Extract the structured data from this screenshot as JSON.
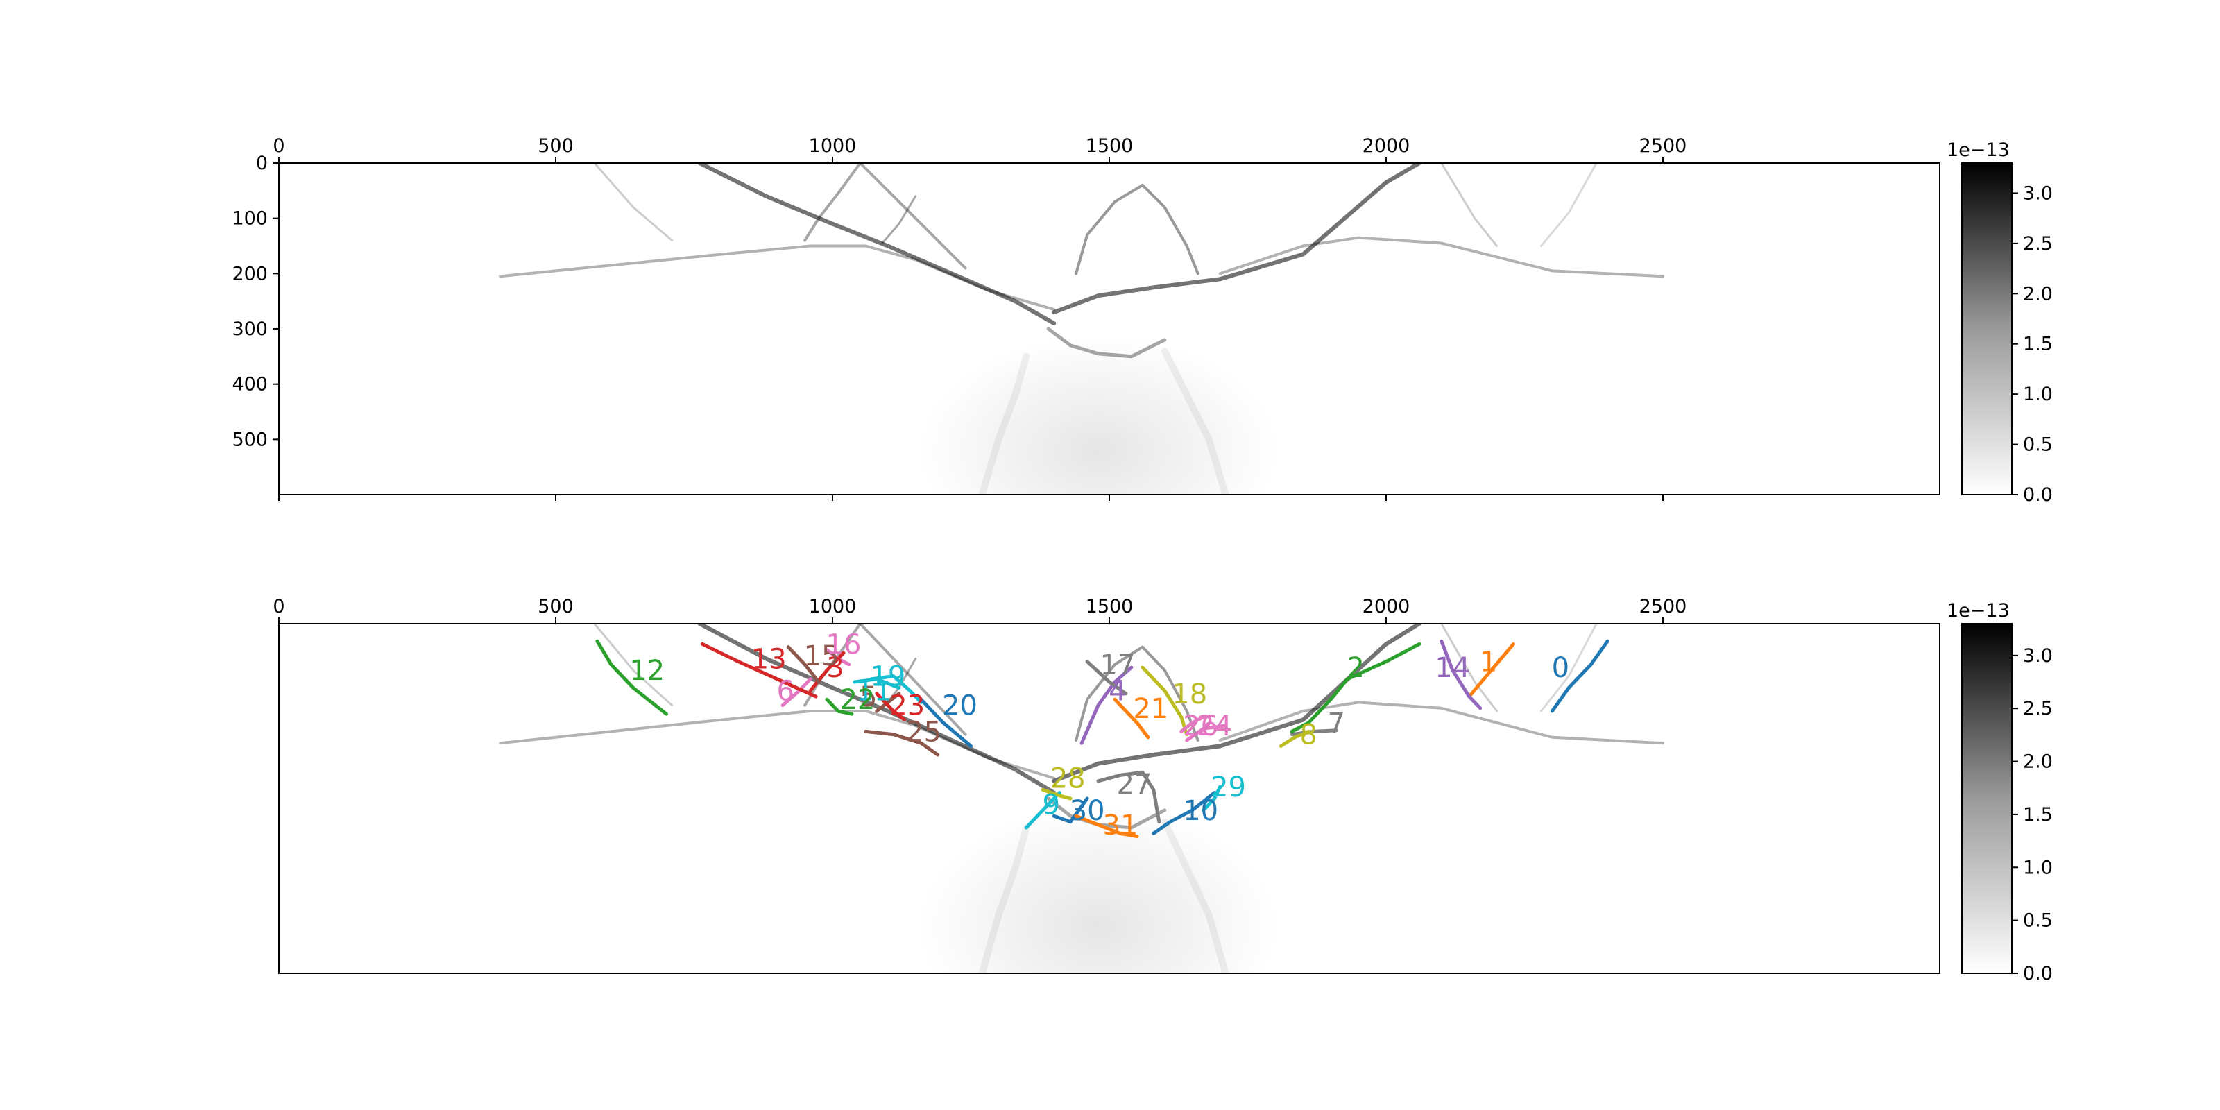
{
  "chart_data": [
    {
      "type": "heatmap",
      "panel": "top",
      "title": "",
      "xlabel": "",
      "ylabel": "",
      "xlim": [
        0,
        3000
      ],
      "ylim": [
        600,
        0
      ],
      "x_ticks": [
        0,
        500,
        1000,
        1500,
        2000,
        2500
      ],
      "y_ticks": [
        0,
        100,
        200,
        300,
        400,
        500
      ],
      "x_axis_position": "top",
      "colormap": "greys",
      "colorbar": {
        "min": 0.0,
        "max": 3.3,
        "ticks": [
          0.0,
          0.5,
          1.0,
          1.5,
          2.0,
          2.5,
          3.0
        ],
        "ticklabels": [
          "0.0",
          "0.5",
          "1.0",
          "1.5",
          "2.0",
          "2.5",
          "3.0"
        ],
        "exponent_label": "1e−13"
      },
      "grid": false
    },
    {
      "type": "heatmap",
      "panel": "bottom",
      "title": "",
      "xlabel": "",
      "ylabel": "",
      "xlim": [
        0,
        3000
      ],
      "ylim": [
        600,
        0
      ],
      "x_ticks": [
        0,
        500,
        1000,
        1500,
        2000,
        2500
      ],
      "x_axis_position": "top",
      "colormap": "greys",
      "colorbar": {
        "min": 0.0,
        "max": 3.3,
        "ticks": [
          0.0,
          0.5,
          1.0,
          1.5,
          2.0,
          2.5,
          3.0
        ],
        "ticklabels": [
          "0.0",
          "0.5",
          "1.0",
          "1.5",
          "2.0",
          "2.5",
          "3.0"
        ],
        "exponent_label": "1e−13"
      },
      "grid": false,
      "tracks": [
        {
          "label": "0",
          "color": "#1f77b4",
          "points": [
            [
              2400,
              30
            ],
            [
              2370,
              70
            ],
            [
              2330,
              110
            ],
            [
              2300,
              150
            ]
          ],
          "label_at": [
            2315,
            75
          ]
        },
        {
          "label": "1",
          "color": "#ff7f0e",
          "points": [
            [
              2230,
              35
            ],
            [
              2190,
              80
            ],
            [
              2150,
              125
            ]
          ],
          "label_at": [
            2185,
            65
          ]
        },
        {
          "label": "2",
          "color": "#2ca02c",
          "points": [
            [
              2060,
              35
            ],
            [
              2000,
              65
            ],
            [
              1930,
              95
            ],
            [
              1900,
              130
            ],
            [
              1860,
              170
            ],
            [
              1830,
              185
            ]
          ],
          "label_at": [
            1945,
            75
          ]
        },
        {
          "label": "3",
          "color": "#d62728",
          "points": [
            [
              1020,
              50
            ],
            [
              990,
              80
            ],
            [
              960,
              115
            ]
          ],
          "label_at": [
            1005,
            75
          ]
        },
        {
          "label": "4",
          "color": "#9467bd",
          "points": [
            [
              1540,
              75
            ],
            [
              1510,
              100
            ],
            [
              1480,
              140
            ],
            [
              1450,
              205
            ]
          ],
          "label_at": [
            1515,
            115
          ]
        },
        {
          "label": "5",
          "color": "#8c564b",
          "points": [
            [
              1120,
              120
            ],
            [
              1100,
              135
            ],
            [
              1080,
              150
            ]
          ],
          "label_at": [
            1065,
            125
          ]
        },
        {
          "label": "6",
          "color": "#e377c2",
          "points": [
            [
              960,
              95
            ],
            [
              940,
              115
            ],
            [
              910,
              140
            ]
          ],
          "label_at": [
            915,
            115
          ]
        },
        {
          "label": "7",
          "color": "#7f7f7f",
          "points": [
            [
              1830,
              190
            ],
            [
              1870,
              185
            ],
            [
              1910,
              183
            ]
          ],
          "label_at": [
            1910,
            170
          ]
        },
        {
          "label": "8",
          "color": "#bcbd22",
          "points": [
            [
              1860,
              185
            ],
            [
              1835,
              195
            ],
            [
              1810,
              210
            ]
          ],
          "label_at": [
            1860,
            190
          ]
        },
        {
          "label": "9",
          "color": "#17becf",
          "points": [
            [
              1410,
              290
            ],
            [
              1380,
              320
            ],
            [
              1350,
              350
            ]
          ],
          "label_at": [
            1395,
            310
          ]
        },
        {
          "label": "10",
          "color": "#1f77b4",
          "points": [
            [
              1690,
              290
            ],
            [
              1650,
              320
            ],
            [
              1610,
              340
            ],
            [
              1580,
              360
            ]
          ],
          "label_at": [
            1665,
            320
          ]
        },
        {
          "label": "11",
          "color": "#17becf",
          "points": [
            [
              1040,
              100
            ],
            [
              1080,
              95
            ],
            [
              1120,
              110
            ]
          ],
          "label_at": [
            1075,
            115
          ]
        },
        {
          "label": "12",
          "color": "#2ca02c",
          "points": [
            [
              575,
              30
            ],
            [
              600,
              70
            ],
            [
              640,
              110
            ],
            [
              700,
              155
            ]
          ],
          "label_at": [
            665,
            80
          ]
        },
        {
          "label": "13",
          "color": "#d62728",
          "points": [
            [
              765,
              35
            ],
            [
              830,
              65
            ],
            [
              900,
              95
            ],
            [
              970,
              125
            ]
          ],
          "label_at": [
            885,
            60
          ]
        },
        {
          "label": "14",
          "color": "#9467bd",
          "points": [
            [
              2100,
              30
            ],
            [
              2120,
              80
            ],
            [
              2150,
              125
            ],
            [
              2170,
              145
            ]
          ],
          "label_at": [
            2120,
            75
          ]
        },
        {
          "label": "15",
          "color": "#8c564b",
          "points": [
            [
              920,
              40
            ],
            [
              950,
              70
            ],
            [
              975,
              100
            ]
          ],
          "label_at": [
            980,
            55
          ]
        },
        {
          "label": "16",
          "color": "#e377c2",
          "points": [
            [
              990,
              45
            ],
            [
              1010,
              60
            ],
            [
              1030,
              70
            ]
          ],
          "label_at": [
            1020,
            35
          ]
        },
        {
          "label": "17",
          "color": "#7f7f7f",
          "points": [
            [
              1460,
              65
            ],
            [
              1500,
              100
            ],
            [
              1530,
              120
            ]
          ],
          "label_at": [
            1515,
            70
          ]
        },
        {
          "label": "18",
          "color": "#bcbd22",
          "points": [
            [
              1560,
              75
            ],
            [
              1600,
              115
            ],
            [
              1630,
              160
            ],
            [
              1640,
              190
            ]
          ],
          "label_at": [
            1645,
            120
          ]
        },
        {
          "label": "19",
          "color": "#17becf",
          "points": [
            [
              1070,
              95
            ],
            [
              1110,
              90
            ],
            [
              1140,
              115
            ],
            [
              1160,
              135
            ]
          ],
          "label_at": [
            1100,
            90
          ]
        },
        {
          "label": "20",
          "color": "#1f77b4",
          "points": [
            [
              1160,
              130
            ],
            [
              1200,
              170
            ],
            [
              1250,
              210
            ]
          ],
          "label_at": [
            1230,
            140
          ]
        },
        {
          "label": "21",
          "color": "#ff7f0e",
          "points": [
            [
              1510,
              130
            ],
            [
              1550,
              170
            ],
            [
              1570,
              195
            ]
          ],
          "label_at": [
            1575,
            145
          ]
        },
        {
          "label": "22",
          "color": "#2ca02c",
          "points": [
            [
              990,
              130
            ],
            [
              1010,
              150
            ],
            [
              1035,
              155
            ]
          ],
          "label_at": [
            1045,
            130
          ]
        },
        {
          "label": "23",
          "color": "#d62728",
          "points": [
            [
              1080,
              120
            ],
            [
              1110,
              150
            ],
            [
              1130,
              165
            ]
          ],
          "label_at": [
            1135,
            140
          ]
        },
        {
          "label": "24",
          "color": "#e377c2",
          "points": [
            [
              1640,
              200
            ],
            [
              1670,
              180
            ],
            [
              1710,
              175
            ]
          ],
          "label_at": [
            1690,
            175
          ]
        },
        {
          "label": "25",
          "color": "#8c564b",
          "points": [
            [
              1060,
              185
            ],
            [
              1110,
              190
            ],
            [
              1160,
              205
            ],
            [
              1190,
              225
            ]
          ],
          "label_at": [
            1165,
            185
          ]
        },
        {
          "label": "26",
          "color": "#e377c2",
          "points": [
            [
              1630,
              185
            ],
            [
              1650,
              170
            ],
            [
              1670,
              160
            ]
          ],
          "label_at": [
            1665,
            175
          ]
        },
        {
          "label": "27",
          "color": "#7f7f7f",
          "points": [
            [
              1480,
              270
            ],
            [
              1520,
              260
            ],
            [
              1560,
              255
            ],
            [
              1580,
              285
            ],
            [
              1590,
              340
            ]
          ],
          "label_at": [
            1545,
            275
          ]
        },
        {
          "label": "28",
          "color": "#bcbd22",
          "points": [
            [
              1380,
              285
            ],
            [
              1410,
              295
            ],
            [
              1430,
              300
            ]
          ],
          "label_at": [
            1425,
            265
          ]
        },
        {
          "label": "29",
          "color": "#17becf",
          "points": [
            [
              1700,
              280
            ],
            [
              1690,
              300
            ],
            [
              1670,
              320
            ]
          ],
          "label_at": [
            1715,
            280
          ]
        },
        {
          "label": "30",
          "color": "#1f77b4",
          "points": [
            [
              1400,
              330
            ],
            [
              1430,
              340
            ],
            [
              1460,
              300
            ]
          ],
          "label_at": [
            1460,
            320
          ]
        },
        {
          "label": "31",
          "color": "#ff7f0e",
          "points": [
            [
              1440,
              330
            ],
            [
              1480,
              345
            ],
            [
              1520,
              360
            ],
            [
              1550,
              365
            ]
          ],
          "label_at": [
            1520,
            345
          ]
        }
      ]
    }
  ]
}
